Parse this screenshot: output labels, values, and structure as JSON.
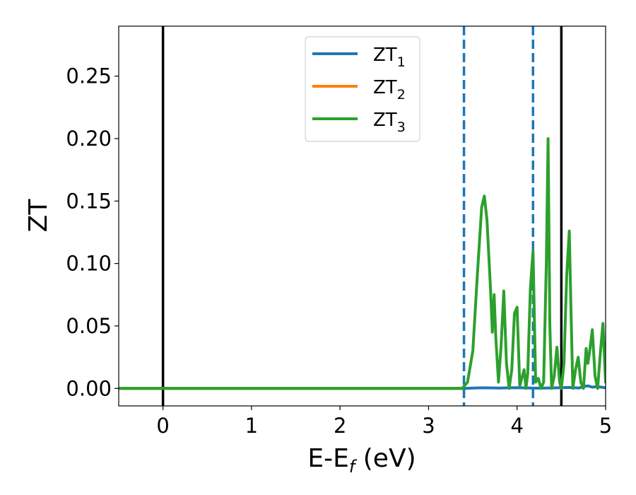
{
  "chart_data": {
    "type": "line",
    "title": "",
    "xlabel": "E-E",
    "xlabel_sub": "f",
    "xlabel_unit": " (eV)",
    "ylabel": "ZT",
    "xlim": [
      -0.5,
      5.0
    ],
    "ylim": [
      -0.014,
      0.29
    ],
    "x_ticks": [
      0,
      1,
      2,
      3,
      4,
      5
    ],
    "x_tick_labels": [
      "0",
      "1",
      "2",
      "3",
      "4",
      "5"
    ],
    "y_ticks": [
      0.0,
      0.05,
      0.1,
      0.15,
      0.2,
      0.25
    ],
    "y_tick_labels": [
      "0.00",
      "0.05",
      "0.10",
      "0.15",
      "0.20",
      "0.25"
    ],
    "grid": false,
    "legend_position": "top-center",
    "vlines": [
      {
        "x": 0.0,
        "style": "solid",
        "color": "#000000"
      },
      {
        "x": 4.5,
        "style": "solid",
        "color": "#000000"
      },
      {
        "x": 3.4,
        "style": "dashed",
        "color": "#1f77b4"
      },
      {
        "x": 4.18,
        "style": "dashed",
        "color": "#1f77b4"
      }
    ],
    "series": [
      {
        "name": "ZT",
        "name_sub": "1",
        "color": "#1f77b4",
        "x": [
          -0.5,
          3.4,
          3.6,
          3.8,
          4.0,
          4.2,
          4.4,
          4.6,
          4.7,
          4.75,
          4.8,
          4.85,
          4.9,
          5.0
        ],
        "y": [
          0,
          0,
          0.0005,
          0.0003,
          0.0006,
          0.0002,
          0.0004,
          0.0008,
          0.0003,
          0.0015,
          0.002,
          0.001,
          0.0015,
          0.0005
        ]
      },
      {
        "name": "ZT",
        "name_sub": "2",
        "color": "#ff7f0e",
        "x": [
          -0.5,
          3.38
        ],
        "y": [
          0,
          0
        ]
      },
      {
        "name": "ZT",
        "name_sub": "3",
        "color": "#2ca02c",
        "x": [
          -0.5,
          3.38,
          3.44,
          3.5,
          3.55,
          3.6,
          3.63,
          3.66,
          3.7,
          3.72,
          3.74,
          3.76,
          3.79,
          3.82,
          3.85,
          3.88,
          3.91,
          3.94,
          3.97,
          4.0,
          4.03,
          4.06,
          4.08,
          4.1,
          4.12,
          4.15,
          4.18,
          4.21,
          4.24,
          4.27,
          4.3,
          4.33,
          4.35,
          4.37,
          4.39,
          4.42,
          4.45,
          4.48,
          4.5,
          4.53,
          4.56,
          4.59,
          4.61,
          4.63,
          4.66,
          4.69,
          4.72,
          4.75,
          4.78,
          4.8,
          4.82,
          4.85,
          4.88,
          4.91,
          4.94,
          4.97,
          5.0
        ],
        "y": [
          0,
          0,
          0.005,
          0.03,
          0.09,
          0.145,
          0.154,
          0.135,
          0.08,
          0.045,
          0.075,
          0.04,
          0.005,
          0.035,
          0.078,
          0.02,
          0.0,
          0.015,
          0.06,
          0.065,
          0.002,
          0.01,
          0.015,
          0.0,
          0.012,
          0.08,
          0.11,
          0.005,
          0.008,
          0.0,
          0.005,
          0.1,
          0.2,
          0.05,
          0.0,
          0.01,
          0.033,
          0.005,
          0.0,
          0.02,
          0.09,
          0.126,
          0.06,
          0.0,
          0.015,
          0.025,
          0.005,
          0.0,
          0.032,
          0.02,
          0.03,
          0.047,
          0.01,
          0.0,
          0.028,
          0.052,
          0.005
        ]
      }
    ]
  }
}
